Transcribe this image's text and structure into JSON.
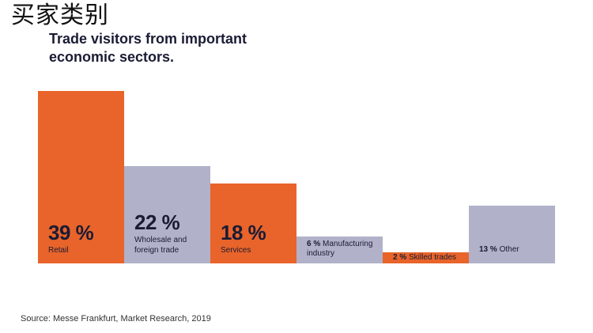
{
  "header": {
    "label": "买家类别"
  },
  "chart_data": {
    "type": "bar",
    "title": "Trade visitors from important economic sectors.",
    "title_lines": [
      "Trade visitors from important",
      "economic sectors."
    ],
    "unit": "%",
    "categories": [
      "Retail",
      "Wholesale and foreign trade",
      "Services",
      "Manufacturing industry",
      "Skilled trades",
      "Other"
    ],
    "values": [
      39,
      22,
      18,
      6,
      2,
      13
    ],
    "display_values": [
      "39 %",
      "22 %",
      "18 %",
      "6 %",
      "2 %",
      "13 %"
    ],
    "label_lines": [
      [
        "Retail"
      ],
      [
        "Wholesale and",
        "foreign trade"
      ],
      [
        "Services"
      ],
      [
        "Manufacturing",
        "industry"
      ],
      [
        "Skilled trades"
      ],
      [
        "Other"
      ]
    ],
    "colors": [
      "#e8642a",
      "#b1b1c9",
      "#e8642a",
      "#b1b1c9",
      "#e8642a",
      "#b1b1c9"
    ],
    "label_style": [
      "large",
      "large",
      "large",
      "inline",
      "inline",
      "inline"
    ],
    "ylim": [
      0,
      39
    ],
    "grid": false,
    "legend": "none"
  },
  "source": "Source: Messe Frankfurt, Market Research, 2019",
  "colors": {
    "text_on_orange": "#1b1b35",
    "text_on_grey": "#1b1b35",
    "orange": "#e8642a",
    "grey": "#b1b1c9"
  }
}
